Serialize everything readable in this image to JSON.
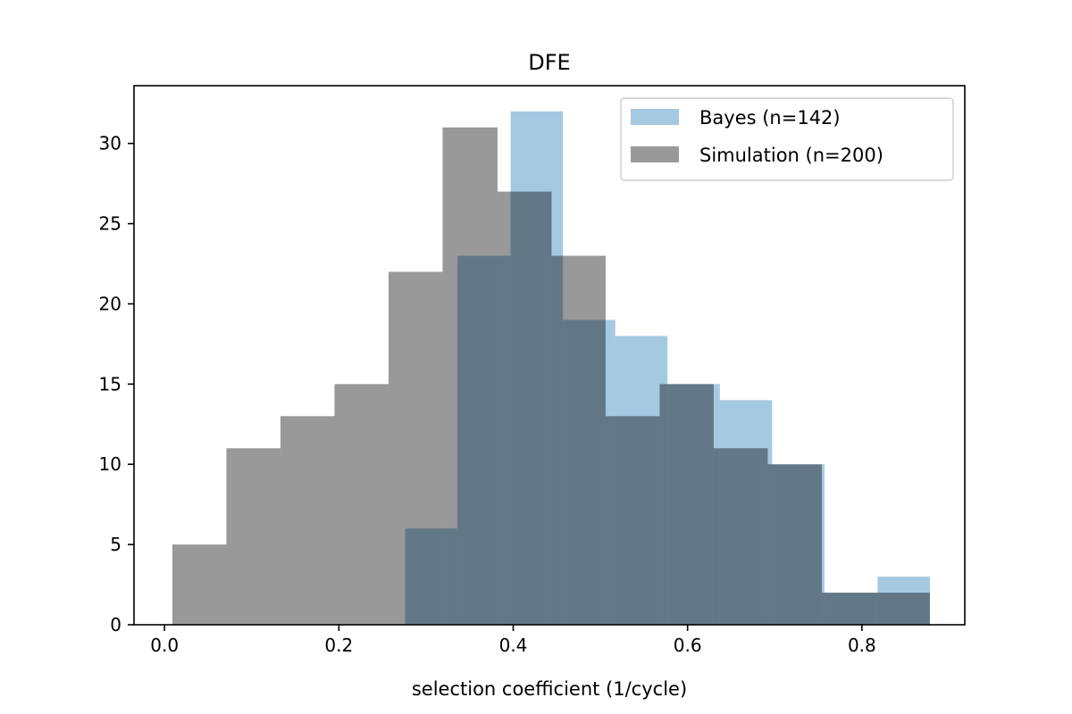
{
  "chart_data": {
    "type": "histogram",
    "title": "DFE",
    "xlabel": "selection coefficient (1/cycle)",
    "ylabel": "",
    "xlim": [
      -0.035,
      0.918
    ],
    "ylim": [
      0,
      33.6
    ],
    "xticks": [
      0.0,
      0.2,
      0.4,
      0.6,
      0.8
    ],
    "xtick_labels": [
      "0.0",
      "0.2",
      "0.4",
      "0.6",
      "0.8"
    ],
    "yticks": [
      0,
      5,
      10,
      15,
      20,
      25,
      30
    ],
    "ytick_labels": [
      "0",
      "5",
      "10",
      "15",
      "20",
      "25",
      "30"
    ],
    "grid": false,
    "legend_position": "top-right",
    "series": [
      {
        "name": "Bayes (n=142)",
        "color": "#1f77b4",
        "opacity": 0.4,
        "bin_edges": [
          0.276,
          0.336,
          0.397,
          0.457,
          0.517,
          0.577,
          0.637,
          0.697,
          0.757,
          0.818,
          0.878
        ],
        "counts": [
          6,
          23,
          32,
          19,
          18,
          15,
          14,
          10,
          2,
          3
        ]
      },
      {
        "name": "Simulation (n=200)",
        "color": "#000000",
        "opacity": 0.4,
        "bin_edges": [
          0.009,
          0.071,
          0.133,
          0.195,
          0.257,
          0.319,
          0.382,
          0.444,
          0.506,
          0.568,
          0.63,
          0.692,
          0.754,
          0.816,
          0.878
        ],
        "counts": [
          5,
          11,
          13,
          15,
          22,
          31,
          27,
          23,
          13,
          15,
          11,
          10,
          2,
          2
        ]
      }
    ]
  }
}
